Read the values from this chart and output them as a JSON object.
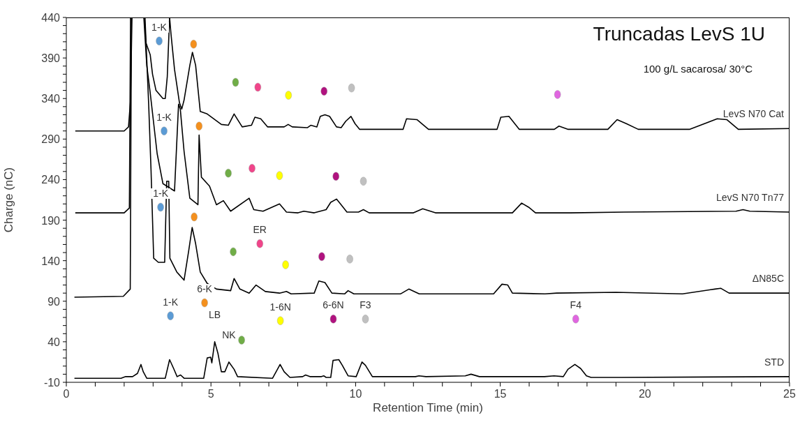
{
  "chart_data": {
    "type": "line",
    "title": "Truncadas LevS 1U",
    "subtitle": "100 g/L sacarosa/ 30°C",
    "xlabel": "Retention Time (min)",
    "ylabel": "Charge (nC)",
    "xlim": [
      0,
      25
    ],
    "ylim": [
      -10,
      440
    ],
    "xticks": [
      0,
      {
        "value": 1,
        "label": null
      },
      {
        "value": 2,
        "label": null
      },
      {
        "value": 3,
        "label": null
      },
      {
        "value": 4,
        "label": null
      },
      5,
      {
        "value": 6,
        "label": null
      },
      {
        "value": 7,
        "label": null
      },
      {
        "value": 8,
        "label": null
      },
      {
        "value": 9,
        "label": null
      },
      10,
      {
        "value": 11,
        "label": null
      },
      {
        "value": 12,
        "label": null
      },
      {
        "value": 13,
        "label": null
      },
      {
        "value": 14,
        "label": null
      },
      15,
      {
        "value": 16,
        "label": null
      },
      {
        "value": 17,
        "label": null
      },
      {
        "value": 18,
        "label": null
      },
      {
        "value": 19,
        "label": null
      },
      20,
      {
        "value": 21,
        "label": null
      },
      {
        "value": 22,
        "label": null
      },
      {
        "value": 23,
        "label": null
      },
      {
        "value": 24,
        "label": null
      },
      25
    ],
    "yticks": [
      -10,
      {
        "value": 0,
        "label": null
      },
      {
        "value": 10,
        "label": null
      },
      {
        "value": 20,
        "label": null
      },
      {
        "value": 30,
        "label": null
      },
      40,
      {
        "value": 50,
        "label": null
      },
      {
        "value": 60,
        "label": null
      },
      {
        "value": 70,
        "label": null
      },
      {
        "value": 80,
        "label": null
      },
      90,
      {
        "value": 100,
        "label": null
      },
      {
        "value": 110,
        "label": null
      },
      {
        "value": 120,
        "label": null
      },
      {
        "value": 130,
        "label": null
      },
      140,
      {
        "value": 150,
        "label": null
      },
      {
        "value": 160,
        "label": null
      },
      {
        "value": 170,
        "label": null
      },
      {
        "value": 180,
        "label": null
      },
      190,
      {
        "value": 200,
        "label": null
      },
      {
        "value": 210,
        "label": null
      },
      {
        "value": 220,
        "label": null
      },
      {
        "value": 230,
        "label": null
      },
      240,
      {
        "value": 250,
        "label": null
      },
      {
        "value": 260,
        "label": null
      },
      {
        "value": 270,
        "label": null
      },
      {
        "value": 280,
        "label": null
      },
      290,
      {
        "value": 300,
        "label": null
      },
      {
        "value": 310,
        "label": null
      },
      {
        "value": 320,
        "label": null
      },
      {
        "value": 330,
        "label": null
      },
      340,
      {
        "value": 350,
        "label": null
      },
      {
        "value": 360,
        "label": null
      },
      {
        "value": 370,
        "label": null
      },
      {
        "value": 380,
        "label": null
      },
      390,
      {
        "value": 400,
        "label": null
      },
      {
        "value": 410,
        "label": null
      },
      {
        "value": 420,
        "label": null
      },
      {
        "value": 430,
        "label": null
      },
      440
    ],
    "grid": false,
    "legend": false,
    "marker": "none",
    "line_style": "solid",
    "series": [
      {
        "name": "LevS N70 Cat",
        "color": "#000000",
        "x": [
          0.31,
          2.0,
          2.15,
          2.22,
          2.27,
          2.45,
          2.7,
          2.75,
          2.9,
          2.98,
          3.1,
          3.34,
          3.42,
          3.49,
          3.57,
          3.62,
          3.74,
          3.91,
          3.99,
          4.07,
          4.27,
          4.36,
          4.47,
          4.63,
          4.87,
          5.36,
          5.6,
          5.8,
          5.92,
          6.08,
          6.4,
          6.52,
          6.72,
          6.96,
          7.53,
          7.67,
          7.81,
          8.33,
          8.45,
          8.66,
          8.78,
          8.94,
          9.1,
          9.34,
          9.5,
          9.66,
          9.84,
          9.98,
          10.14,
          11.64,
          11.76,
          12.12,
          12.52,
          14.89,
          15.02,
          15.3,
          15.66,
          16.87,
          17.03,
          17.35,
          18.72,
          19.04,
          19.36,
          19.77,
          21.54,
          22.5,
          22.83,
          23.23,
          25.0
        ],
        "values": [
          300,
          300,
          305,
          338,
          440,
          null,
          440,
          409,
          394,
          370,
          350,
          340,
          340,
          367,
          440,
          419,
          376,
          335,
          327,
          338,
          381,
          397,
          381,
          324,
          321,
          308,
          307,
          321,
          314,
          305,
          307,
          317,
          315,
          305,
          305,
          308,
          305,
          304,
          307,
          305,
          318,
          320,
          318,
          305,
          304,
          312,
          318,
          309,
          302,
          302,
          315,
          314,
          302,
          302,
          317,
          318,
          302,
          302,
          306,
          302,
          302,
          314,
          309,
          302,
          302,
          315,
          314,
          302,
          303
        ]
      },
      {
        "name": "LevS N70 Tn77",
        "color": "#000000",
        "x": [
          0.31,
          2.0,
          2.18,
          2.22,
          2.45,
          2.68,
          2.78,
          2.9,
          3.14,
          3.34,
          3.74,
          3.88,
          3.94,
          4.07,
          4.27,
          4.55,
          4.59,
          4.67,
          4.95,
          5.19,
          5.43,
          5.68,
          6.32,
          6.48,
          6.8,
          7.37,
          7.61,
          8.01,
          8.21,
          8.57,
          8.98,
          9.14,
          9.34,
          9.5,
          9.7,
          10.1,
          10.27,
          10.47,
          12.0,
          12.32,
          12.76,
          15.42,
          15.74,
          15.98,
          16.22,
          17.43,
          19.28,
          23.15,
          23.39,
          23.63,
          25.0
        ],
        "values": [
          199,
          199,
          205,
          440,
          null,
          440,
          381,
          347,
          272,
          235,
          226,
          333,
          327,
          275,
          217,
          209,
          295,
          243,
          232,
          209,
          214,
          201,
          217,
          203,
          201,
          210,
          200,
          199,
          201,
          199,
          203,
          212,
          216,
          209,
          200,
          200,
          203,
          199,
          199,
          204,
          199,
          199,
          211,
          206,
          199,
          199,
          200,
          201,
          203,
          201,
          200
        ]
      },
      {
        "name": "ΔN85C",
        "color": "#000000",
        "x": [
          0.28,
          1.97,
          2.21,
          2.25,
          2.45,
          2.72,
          2.85,
          2.93,
          3.02,
          3.18,
          3.4,
          3.47,
          3.54,
          3.58,
          3.82,
          4.07,
          4.23,
          4.35,
          4.47,
          4.63,
          4.87,
          5.19,
          5.68,
          5.8,
          6.0,
          6.32,
          6.56,
          6.88,
          7.37,
          7.61,
          7.77,
          8.57,
          8.73,
          8.94,
          9.18,
          9.62,
          9.74,
          9.94,
          11.55,
          11.84,
          12.2,
          14.77,
          15.06,
          15.26,
          15.42,
          16.55,
          16.95,
          19.0,
          21.3,
          22.42,
          22.62,
          22.91,
          25.0
        ],
        "values": [
          95,
          96,
          105,
          440,
          null,
          440,
          330,
          250,
          143,
          138,
          138,
          238,
          238,
          143,
          126,
          116,
          152,
          181,
          161,
          126,
          112,
          105,
          103,
          118,
          105,
          100,
          110,
          102,
          100,
          102,
          99,
          100,
          115,
          113,
          100,
          99,
          103,
          99,
          99,
          105,
          99,
          99,
          111,
          110,
          100,
          99,
          100,
          101,
          99,
          105,
          106,
          100,
          100
        ]
      },
      {
        "name": "STD",
        "color": "#000000",
        "x": [
          0.28,
          1.89,
          2.05,
          2.29,
          2.46,
          2.58,
          2.66,
          2.78,
          3.42,
          3.57,
          3.71,
          3.83,
          3.95,
          4.07,
          4.75,
          4.87,
          4.99,
          5.03,
          5.13,
          5.24,
          5.36,
          5.48,
          5.62,
          5.8,
          5.92,
          7.13,
          7.39,
          7.53,
          7.73,
          8.17,
          8.27,
          8.42,
          8.82,
          8.9,
          8.98,
          9.14,
          9.22,
          9.42,
          9.54,
          9.74,
          10.02,
          10.22,
          10.34,
          10.58,
          12.07,
          12.19,
          12.43,
          13.79,
          13.99,
          14.28,
          16.53,
          16.86,
          17.18,
          17.34,
          17.58,
          17.78,
          17.98,
          18.14,
          19.19,
          25.0
        ],
        "values": [
          -5,
          -5,
          -3,
          -3,
          1,
          12,
          3,
          -5,
          -5,
          18,
          7,
          -3,
          -1,
          -5,
          -5,
          20,
          21,
          14,
          40,
          26,
          3,
          3,
          15,
          6,
          -3,
          -5,
          12,
          3,
          -4,
          -3,
          -1,
          -3,
          -3,
          -2,
          -4,
          -4,
          17,
          18,
          11,
          -2,
          -3,
          15,
          11,
          -3,
          -3,
          -2,
          -3,
          -2,
          0,
          -3,
          -3,
          -2,
          -3,
          6,
          12,
          7,
          -2,
          -4,
          -4,
          -3
        ]
      },
      {
        "type": "scatter",
        "marker": "circle",
        "x": [
          3.21,
          4.4,
          5.85,
          6.62,
          7.68,
          8.91,
          9.86,
          16.98,
          3.38,
          4.59,
          5.6,
          6.42,
          7.37,
          9.32,
          10.27,
          3.26,
          4.42,
          5.77,
          6.69,
          7.58,
          8.83,
          9.8,
          3.6,
          4.78,
          6.06,
          7.4,
          9.23,
          10.34,
          17.61
        ],
        "values": [
          411,
          407,
          360,
          354,
          344,
          349,
          353,
          345,
          300,
          306,
          248,
          254,
          245,
          244,
          238,
          206,
          194,
          151,
          161,
          135,
          145,
          142,
          72,
          88,
          42,
          66,
          68,
          68,
          68
        ],
        "colors": [
          "#5b9bd5",
          "#f4901e",
          "#70ad47",
          "#f0458a",
          "#ffff00",
          "#b0127f",
          "#c0c0c0",
          "#e066e0",
          "#5b9bd5",
          "#f4901e",
          "#70ad47",
          "#f0458a",
          "#ffff00",
          "#b0127f",
          "#c0c0c0",
          "#5b9bd5",
          "#f4901e",
          "#70ad47",
          "#f0458a",
          "#ffff00",
          "#b0127f",
          "#c0c0c0",
          "#5b9bd5",
          "#f4901e",
          "#70ad47",
          "#ffff00",
          "#b0127f",
          "#c0c0c0",
          "#e066e0"
        ]
      }
    ],
    "annotations": [
      {
        "text": "1-K",
        "x": 3.21,
        "y": 411
      },
      {
        "text": "1-K",
        "x": 3.38,
        "y": 300
      },
      {
        "text": "1-K",
        "x": 3.26,
        "y": 206
      },
      {
        "text": "ER",
        "x": 6.69,
        "y": 161
      },
      {
        "text": "1-K",
        "x": 3.6,
        "y": 72
      },
      {
        "text": "6-K",
        "x": 4.78,
        "y": 88
      },
      {
        "text": "LB",
        "x": 5.13,
        "y": 40
      },
      {
        "text": "NK",
        "x": 5.62,
        "y": 15
      },
      {
        "text": "1-6N",
        "x": 7.4,
        "y": 66
      },
      {
        "text": "6-6N",
        "x": 9.23,
        "y": 68
      },
      {
        "text": "F3",
        "x": 10.34,
        "y": 68
      },
      {
        "text": "F4",
        "x": 17.61,
        "y": 68
      }
    ]
  }
}
